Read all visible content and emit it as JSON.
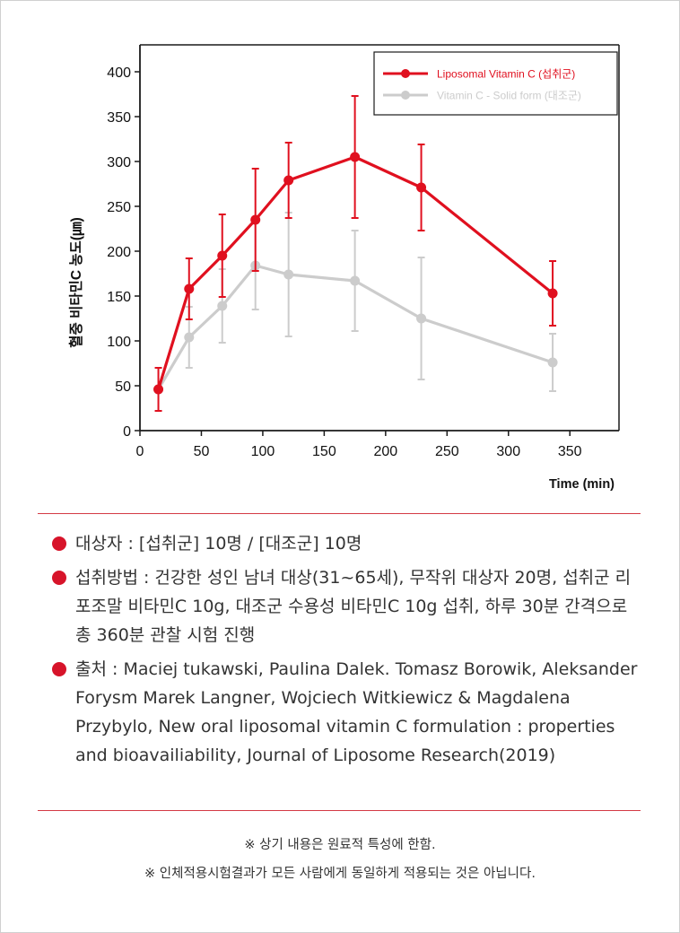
{
  "colors": {
    "series_red": "#e0101f",
    "series_gray": "#cccccc",
    "axis": "#1a1a1a",
    "accent": "#d7142a"
  },
  "chart_data": {
    "type": "line",
    "title": "",
    "xlabel": "Time (min)",
    "ylabel": "혈중 비타민C 농도(㎛)",
    "xlim": [
      0,
      390
    ],
    "ylim": [
      0,
      430
    ],
    "xticks": [
      0,
      50,
      100,
      150,
      200,
      250,
      300,
      350
    ],
    "yticks": [
      0,
      50,
      100,
      150,
      200,
      250,
      300,
      350,
      400
    ],
    "grid": false,
    "legend_position": "top-right",
    "series": [
      {
        "name": "Liposomal Vitamin C (섭취군)",
        "color": "#e0101f",
        "x": [
          15,
          40,
          67,
          94,
          121,
          175,
          229,
          336
        ],
        "y": [
          46,
          158,
          195,
          235,
          279,
          305,
          271,
          153
        ],
        "err": [
          24,
          34,
          46,
          57,
          42,
          68,
          48,
          36
        ]
      },
      {
        "name": "Vitamin C - Solid form (대조군)",
        "color": "#cccccc",
        "x": [
          15,
          40,
          67,
          94,
          121,
          175,
          229,
          336
        ],
        "y": [
          46,
          104,
          139,
          184,
          174,
          167,
          125,
          76
        ],
        "err": [
          0,
          34,
          41,
          49,
          69,
          56,
          68,
          32
        ]
      }
    ]
  },
  "notes": [
    "대상자 : [섭취군] 10명 / [대조군] 10명",
    "섭취방법 : 건강한 성인 남녀 대상(31~65세), 무작위 대상자 20명, 섭취군 리포조말 비타민C 10g, 대조군 수용성 비타민C 10g 섭취, 하루 30분 간격으로 총 360분 관찰 시험 진행",
    "출처 : Maciej tukawski, Paulina Dalek. Tomasz Borowik, Aleksander Forysm Marek Langner, Wojciech Witkiewicz & Magdalena Przybylo, New oral liposomal vitamin C formulation : properties and bioavailiability, Journal of Liposome Research(2019)"
  ],
  "footnotes": [
    "※ 상기 내용은 원료적 특성에 한함.",
    "※ 인체적용시험결과가 모든 사람에게 동일하게 적용되는 것은 아닙니다."
  ]
}
